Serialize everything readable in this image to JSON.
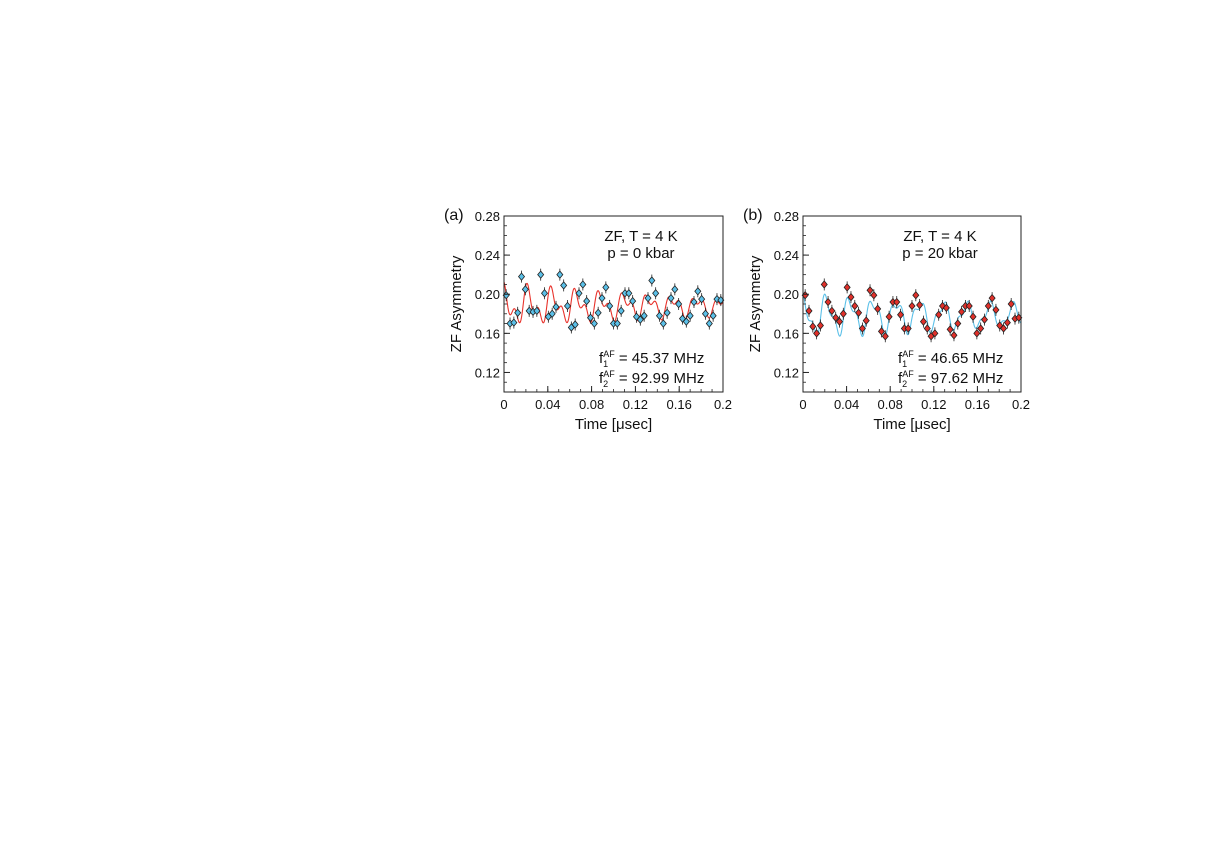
{
  "chart_data": [
    {
      "type": "scatter",
      "panel_label": "(a)",
      "xlabel": "Time [μsec]",
      "ylabel": "ZF Asymmetry",
      "xlim": [
        0,
        0.2
      ],
      "ylim": [
        0.1,
        0.28
      ],
      "xticks": [
        0,
        0.04,
        0.08,
        0.12,
        0.16,
        0.2
      ],
      "xtick_labels": [
        "0",
        "0.04",
        "0.08",
        "0.12",
        "0.16",
        "0.2"
      ],
      "yticks": [
        0.12,
        0.16,
        0.2,
        0.24,
        0.28
      ],
      "ytick_labels": [
        "0.12",
        "0.16",
        "0.20",
        "0.24",
        "0.28"
      ],
      "annotations": {
        "line1": "ZF, T = 4 K",
        "line2": "p = 0 kbar",
        "f1_base": "f",
        "f1_sub": "1",
        "f1_sup": "AF",
        "f1_value": " = 45.37 MHz",
        "f2_base": "f",
        "f2_sub": "2",
        "f2_sup": "AF",
        "f2_value": " = 92.99 MHz"
      },
      "marker_color": "#5bc0e8",
      "fit_color": "#e8322b",
      "fit_params": {
        "a0": 0.188,
        "a1": 0.015,
        "f1": 45.37,
        "a2": 0.011,
        "f2": 92.99,
        "p2": 0.5,
        "decay": 4.0
      },
      "x": [
        0.002,
        0.0055,
        0.009,
        0.0125,
        0.016,
        0.0195,
        0.023,
        0.0265,
        0.03,
        0.0335,
        0.037,
        0.0405,
        0.044,
        0.0475,
        0.051,
        0.0545,
        0.058,
        0.0615,
        0.065,
        0.0685,
        0.072,
        0.0755,
        0.079,
        0.0825,
        0.086,
        0.0895,
        0.093,
        0.0965,
        0.1,
        0.1035,
        0.107,
        0.1105,
        0.114,
        0.1175,
        0.121,
        0.1245,
        0.128,
        0.1315,
        0.135,
        0.1385,
        0.142,
        0.1455,
        0.149,
        0.1525,
        0.156,
        0.1595,
        0.163,
        0.1665,
        0.17,
        0.1735,
        0.177,
        0.1805,
        0.184,
        0.1875,
        0.191,
        0.1945,
        0.198
      ],
      "y": [
        0.199,
        0.17,
        0.171,
        0.181,
        0.218,
        0.205,
        0.183,
        0.182,
        0.183,
        0.22,
        0.201,
        0.177,
        0.18,
        0.187,
        0.22,
        0.209,
        0.188,
        0.166,
        0.169,
        0.201,
        0.21,
        0.193,
        0.176,
        0.17,
        0.181,
        0.196,
        0.207,
        0.188,
        0.17,
        0.17,
        0.183,
        0.201,
        0.201,
        0.193,
        0.177,
        0.174,
        0.178,
        0.196,
        0.214,
        0.201,
        0.178,
        0.17,
        0.181,
        0.196,
        0.205,
        0.19,
        0.175,
        0.172,
        0.178,
        0.192,
        0.203,
        0.195,
        0.18,
        0.17,
        0.178,
        0.195,
        0.194
      ]
    },
    {
      "type": "scatter",
      "panel_label": "(b)",
      "xlabel": "Time [μsec]",
      "ylabel": "ZF Asymmetry",
      "xlim": [
        0,
        0.2
      ],
      "ylim": [
        0.1,
        0.28
      ],
      "xticks": [
        0,
        0.04,
        0.08,
        0.12,
        0.16,
        0.2
      ],
      "xtick_labels": [
        "0",
        "0.04",
        "0.08",
        "0.12",
        "0.16",
        "0.2"
      ],
      "yticks": [
        0.12,
        0.16,
        0.2,
        0.24,
        0.28
      ],
      "ytick_labels": [
        "0.12",
        "0.16",
        "0.20",
        "0.24",
        "0.28"
      ],
      "annotations": {
        "line1": "ZF, T = 4 K",
        "line2": "p = 20 kbar",
        "f1_base": "f",
        "f1_sub": "1",
        "f1_sup": "AF",
        "f1_value": " = 46.65 MHz",
        "f2_base": "f",
        "f2_sub": "2",
        "f2_sup": "AF",
        "f2_value": " = 97.62 MHz"
      },
      "marker_color": "#e0302a",
      "fit_color": "#5bc0e8",
      "fit_params": {
        "a0": 0.178,
        "a1": 0.018,
        "f1": 46.65,
        "a2": 0.008,
        "f2": 97.62,
        "p2": 0.8,
        "decay": 3.0
      },
      "x": [
        0.002,
        0.0055,
        0.009,
        0.0125,
        0.016,
        0.0195,
        0.023,
        0.0265,
        0.03,
        0.0335,
        0.037,
        0.0405,
        0.044,
        0.0475,
        0.051,
        0.0545,
        0.058,
        0.0615,
        0.065,
        0.0685,
        0.072,
        0.0755,
        0.079,
        0.0825,
        0.086,
        0.0895,
        0.093,
        0.0965,
        0.1,
        0.1035,
        0.107,
        0.1105,
        0.114,
        0.1175,
        0.121,
        0.1245,
        0.128,
        0.1315,
        0.135,
        0.1385,
        0.142,
        0.1455,
        0.149,
        0.1525,
        0.156,
        0.1595,
        0.163,
        0.1665,
        0.17,
        0.1735,
        0.177,
        0.1805,
        0.184,
        0.1875,
        0.191,
        0.1945,
        0.198
      ],
      "y": [
        0.199,
        0.183,
        0.167,
        0.16,
        0.168,
        0.21,
        0.192,
        0.183,
        0.176,
        0.172,
        0.18,
        0.207,
        0.197,
        0.188,
        0.181,
        0.165,
        0.173,
        0.204,
        0.199,
        0.185,
        0.162,
        0.157,
        0.177,
        0.192,
        0.192,
        0.179,
        0.165,
        0.165,
        0.188,
        0.199,
        0.189,
        0.172,
        0.165,
        0.157,
        0.16,
        0.179,
        0.188,
        0.186,
        0.164,
        0.158,
        0.17,
        0.182,
        0.188,
        0.188,
        0.177,
        0.16,
        0.165,
        0.174,
        0.188,
        0.196,
        0.184,
        0.168,
        0.165,
        0.171,
        0.19,
        0.175,
        0.176
      ]
    }
  ]
}
